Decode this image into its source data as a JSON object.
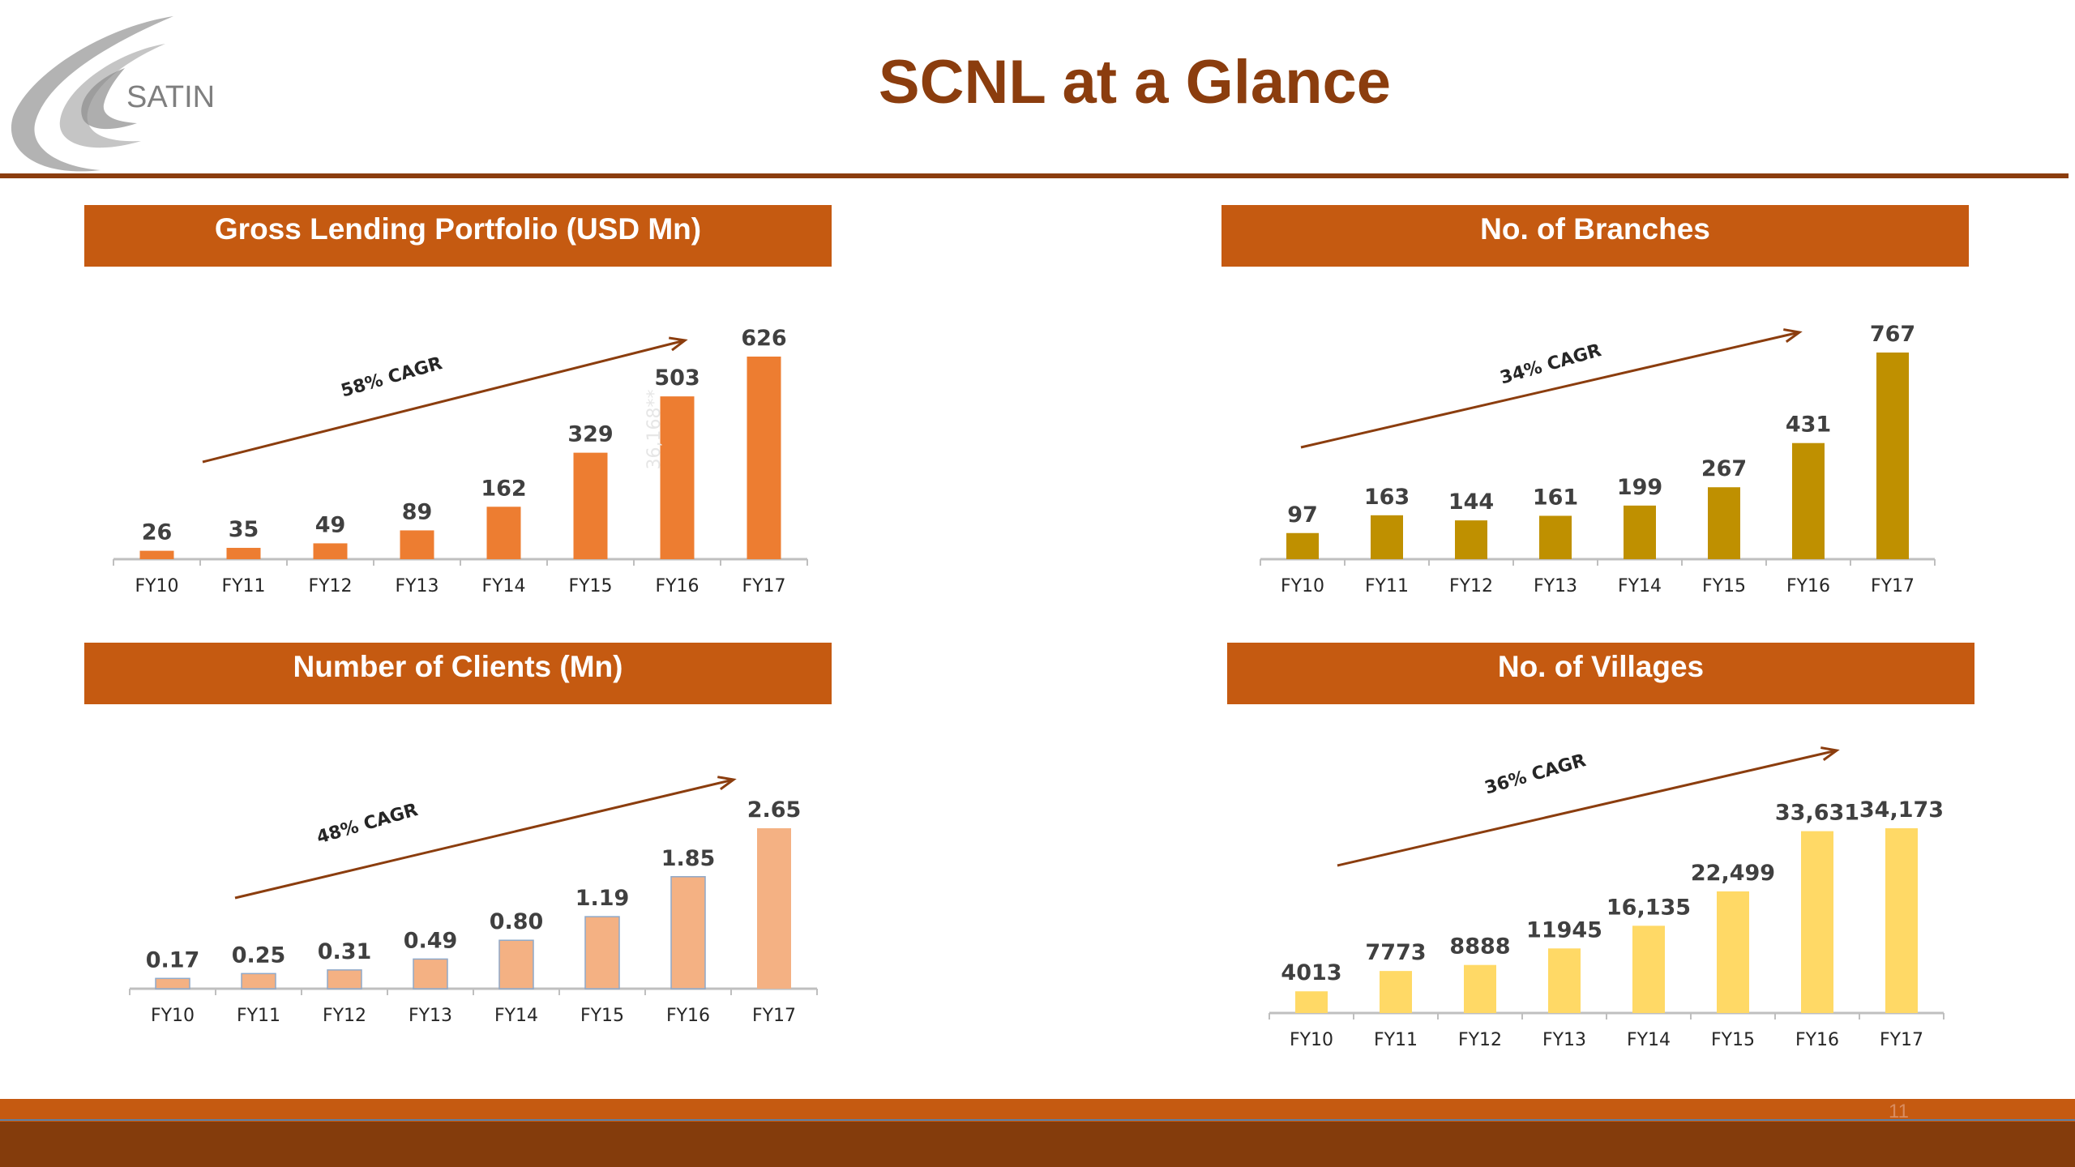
{
  "header": {
    "title": "SCNL at a Glance",
    "logo_text": "SATIN"
  },
  "colors": {
    "brand_brown": "#8b3d0e",
    "panel_orange": "#c55a11",
    "arrow": "#8b3d0e"
  },
  "footer": {
    "page_number": "11"
  },
  "panels": [
    {
      "title": "Gross Lending Portfolio (USD Mn)"
    },
    {
      "title": "No. of Branches"
    },
    {
      "title": "Number of Clients (Mn)"
    },
    {
      "title": "No. of Villages"
    }
  ],
  "chart_data": [
    {
      "type": "bar",
      "title": "Gross Lending Portfolio (USD Mn)",
      "categories": [
        "FY10",
        "FY11",
        "FY12",
        "FY13",
        "FY14",
        "FY15",
        "FY16",
        "FY17"
      ],
      "values": [
        26,
        35,
        49,
        89,
        162,
        329,
        503,
        626
      ],
      "labels": [
        "26",
        "35",
        "49",
        "89",
        "162",
        "329",
        "503",
        "626"
      ],
      "annotation": "58% CAGR",
      "faint_note": "36,168**",
      "color": "#ed7d31",
      "ylim": [
        0,
        626
      ]
    },
    {
      "type": "bar",
      "title": "No. of Branches",
      "categories": [
        "FY10",
        "FY11",
        "FY12",
        "FY13",
        "FY14",
        "FY15",
        "FY16",
        "FY17"
      ],
      "values": [
        97,
        163,
        144,
        161,
        199,
        267,
        431,
        767
      ],
      "labels": [
        "97",
        "163",
        "144",
        "161",
        "199",
        "267",
        "431",
        "767"
      ],
      "annotation": "34% CAGR",
      "color": "#bf9000",
      "ylim": [
        0,
        767
      ]
    },
    {
      "type": "bar",
      "title": "Number of Clients (Mn)",
      "categories": [
        "FY10",
        "FY11",
        "FY12",
        "FY13",
        "FY14",
        "FY15",
        "FY16",
        "FY17"
      ],
      "values": [
        0.17,
        0.25,
        0.31,
        0.49,
        0.8,
        1.19,
        1.85,
        2.65
      ],
      "labels": [
        "0.17",
        "0.25",
        "0.31",
        "0.49",
        "0.80",
        "1.19",
        "1.85",
        "2.65"
      ],
      "annotation": "48% CAGR",
      "color": "#f4b183",
      "ylim": [
        0,
        2.65
      ]
    },
    {
      "type": "bar",
      "title": "No. of Villages",
      "categories": [
        "FY10",
        "FY11",
        "FY12",
        "FY13",
        "FY14",
        "FY15",
        "FY16",
        "FY17"
      ],
      "values": [
        4013,
        7773,
        8888,
        11945,
        16135,
        22499,
        33631,
        34173
      ],
      "labels": [
        "4013",
        "7773",
        "8888",
        "11945",
        "16,135",
        "22,499",
        "33,631",
        "34,173"
      ],
      "annotation": "36% CAGR",
      "color": "#ffd966",
      "ylim": [
        0,
        34173
      ]
    }
  ]
}
